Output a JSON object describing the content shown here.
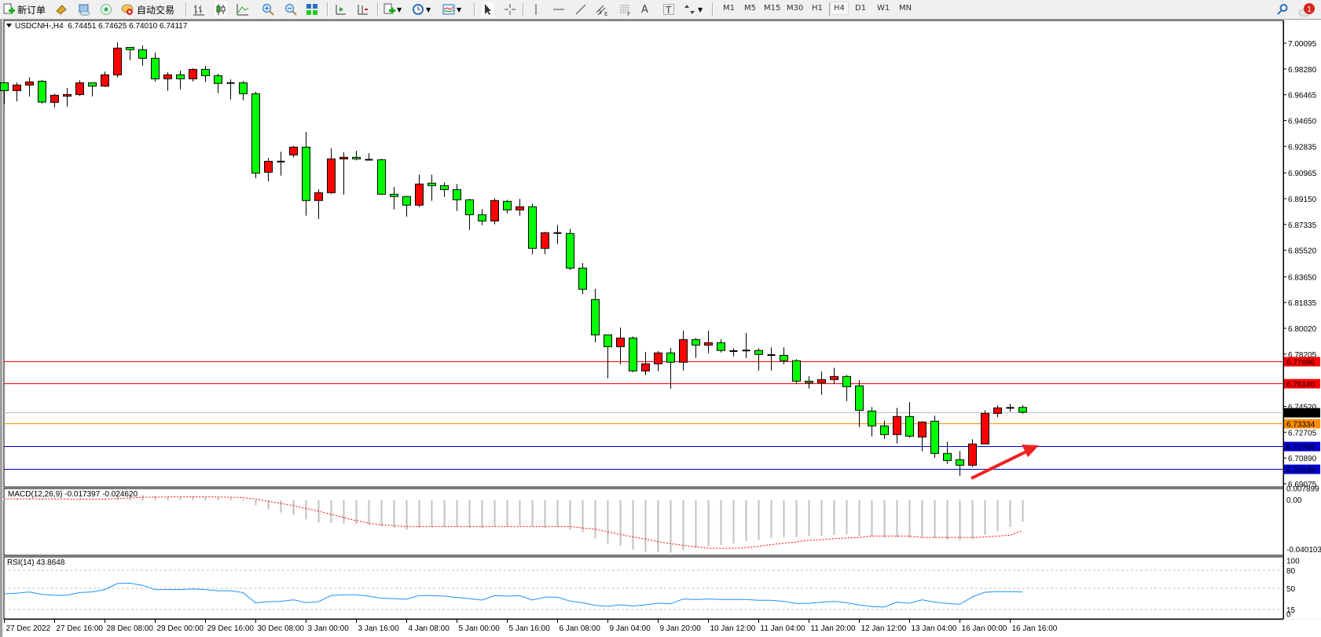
{
  "toolbar": {
    "new_order_label": "新订单",
    "auto_trading_label": "自动交易",
    "timeframes": [
      "M1",
      "M5",
      "M15",
      "M30",
      "H1",
      "H4",
      "D1",
      "W1",
      "MN"
    ],
    "active_timeframe": "H4",
    "notification_count": "1",
    "tools": {
      "fibo_fan_sub": "E",
      "fibo_lines_sub": "F",
      "text_tool": "A",
      "text_label_tool": "T"
    }
  },
  "chart": {
    "symbol_line": "USDCNH-,H4  6.74451 6.74625 6.74010 6.74117",
    "bull_color": "#ff0000",
    "bear_color": "#00ff00",
    "price_ticks": [
      "7.00095",
      "6.98280",
      "6.96465",
      "6.94650",
      "6.92835",
      "6.90965",
      "6.89150",
      "6.87335",
      "6.85520",
      "6.83650",
      "6.81835",
      "6.80020",
      "6.78205",
      "6.74520",
      "6.72705",
      "6.70890",
      "6.69075"
    ],
    "levels": [
      {
        "price": "6.77696",
        "color": "#ff0000",
        "label_bg": "#ff0000"
      },
      {
        "price": "6.76140",
        "color": "#ff0000",
        "label_bg": "#ff0000"
      },
      {
        "price": "6.74117",
        "color": "#c0c0c0",
        "label_bg": "#000000"
      },
      {
        "price": "6.73334",
        "color": "#ff8c00",
        "label_bg": "#ff8c00"
      },
      {
        "price": "6.71706",
        "color": "#0000cd",
        "label_bg": "#0000cd"
      },
      {
        "price": "6.70135",
        "color": "#0000cd",
        "label_bg": "#0000cd"
      }
    ],
    "annotation_arrow_color": "#ee2222",
    "time_labels": [
      "27 Dec 2022",
      "27 Dec 16:00",
      "28 Dec 08:00",
      "29 Dec 00:00",
      "29 Dec 16:00",
      "30 Dec 08:00",
      "3 Jan 00:00",
      "3 Jan 16:00",
      "4 Jan 08:00",
      "5 Jan 00:00",
      "5 Jan 16:00",
      "6 Jan 08:00",
      "9 Jan 04:00",
      "9 Jan 20:00",
      "10 Jan 12:00",
      "11 Jan 04:00",
      "11 Jan 20:00",
      "12 Jan 12:00",
      "13 Jan 04:00",
      "16 Jan 00:00",
      "16 Jan 16:00"
    ]
  },
  "chart_data": [
    {
      "type": "candlestick",
      "title": "USDCNH-,H4",
      "ylim": [
        6.6885,
        7.017
      ],
      "ohlc_order": [
        "open",
        "high",
        "low",
        "close"
      ],
      "candles": [
        [
          6.9731,
          6.9733,
          6.958,
          6.9676
        ],
        [
          6.9676,
          6.9733,
          6.9599,
          6.9715
        ],
        [
          6.9715,
          6.977,
          6.9635,
          6.9737
        ],
        [
          6.9742,
          6.9751,
          6.9585,
          6.9595
        ],
        [
          6.9593,
          6.9654,
          6.9558,
          6.9643
        ],
        [
          6.9637,
          6.9694,
          6.9563,
          6.9648
        ],
        [
          6.9648,
          6.9748,
          6.9637,
          6.9731
        ],
        [
          6.9731,
          6.9731,
          6.9635,
          6.9707
        ],
        [
          6.9707,
          6.981,
          6.9702,
          6.9787
        ],
        [
          6.9787,
          7.0015,
          6.9768,
          6.9975
        ],
        [
          6.998,
          6.998,
          6.989,
          6.9964
        ],
        [
          6.9964,
          6.9993,
          6.9851,
          6.9903
        ],
        [
          6.9903,
          6.9943,
          6.974,
          6.9759
        ],
        [
          6.9759,
          6.9805,
          6.9674,
          6.9787
        ],
        [
          6.9787,
          6.9816,
          6.9685,
          6.9759
        ],
        [
          6.9759,
          6.9833,
          6.974,
          6.9825
        ],
        [
          6.9825,
          6.9849,
          6.9735,
          6.9781
        ],
        [
          6.9781,
          6.9794,
          6.9657,
          6.9726
        ],
        [
          6.9729,
          6.9755,
          6.9613,
          6.9729
        ],
        [
          6.9731,
          6.9744,
          6.9608,
          6.9654
        ],
        [
          6.9654,
          6.9667,
          6.906,
          6.9095
        ],
        [
          6.9101,
          6.9202,
          6.9038,
          6.9178
        ],
        [
          6.9176,
          6.9246,
          6.9077,
          6.9176
        ],
        [
          6.9223,
          6.9287,
          6.9204,
          6.9278
        ],
        [
          6.9278,
          6.9385,
          6.8795,
          6.8902
        ],
        [
          6.8902,
          6.8981,
          6.8772,
          6.8957
        ],
        [
          6.8957,
          6.9269,
          6.8948,
          6.9195
        ],
        [
          6.9195,
          6.9241,
          6.8944,
          6.9206
        ],
        [
          6.9206,
          6.9252,
          6.9184,
          6.9195
        ],
        [
          6.9189,
          6.9235,
          6.9184,
          6.9189
        ],
        [
          6.9189,
          6.9195,
          6.8942,
          6.8946
        ],
        [
          6.8946,
          6.8996,
          6.8839,
          6.893
        ],
        [
          6.893,
          6.8935,
          6.8789,
          6.8869
        ],
        [
          6.8869,
          6.9084,
          6.8855,
          6.9018
        ],
        [
          6.9024,
          6.9084,
          6.89,
          6.9007
        ],
        [
          6.9007,
          6.9029,
          6.8927,
          6.8979
        ],
        [
          6.8979,
          6.9018,
          6.8828,
          6.8907
        ],
        [
          6.8907,
          6.8913,
          6.8695,
          6.8802
        ],
        [
          6.8802,
          6.8841,
          6.8728,
          6.8758
        ],
        [
          6.8758,
          6.8918,
          6.8734,
          6.8902
        ],
        [
          6.8896,
          6.8907,
          6.8811,
          6.8836
        ],
        [
          6.8836,
          6.8913,
          6.8795,
          6.8858
        ],
        [
          6.8858,
          6.888,
          6.8524,
          6.8565
        ],
        [
          6.8565,
          6.8681,
          6.8524,
          6.8675
        ],
        [
          6.8673,
          6.873,
          6.8596,
          6.8673
        ],
        [
          6.867,
          6.8703,
          6.8413,
          6.8426
        ],
        [
          6.8426,
          6.8461,
          6.8242,
          6.8277
        ],
        [
          6.8205,
          6.8279,
          6.7904,
          6.7956
        ],
        [
          6.7956,
          6.7956,
          6.765,
          6.7873
        ],
        [
          6.7873,
          6.8008,
          6.7749,
          6.7934
        ],
        [
          6.7934,
          6.7945,
          6.7694,
          6.7702
        ],
        [
          6.7702,
          6.7836,
          6.7672,
          6.7752
        ],
        [
          6.7752,
          6.7842,
          6.77,
          6.7829
        ],
        [
          6.7829,
          6.7864,
          6.7578,
          6.7763
        ],
        [
          6.7763,
          6.7986,
          6.7705,
          6.7923
        ],
        [
          6.7923,
          6.7934,
          6.7794,
          6.7884
        ],
        [
          6.7884,
          6.7986,
          6.7827,
          6.7901
        ],
        [
          6.7901,
          6.7923,
          6.7832,
          6.7846
        ],
        [
          6.7842,
          6.7862,
          6.7805,
          6.7842
        ],
        [
          6.7846,
          6.7969,
          6.7794,
          6.7846
        ],
        [
          6.7846,
          6.7862,
          6.7705,
          6.7818
        ],
        [
          6.7814,
          6.7868,
          6.7705,
          6.7814
        ],
        [
          6.7812,
          6.7868,
          6.7749,
          6.7774
        ],
        [
          6.7774,
          6.7785,
          6.7611,
          6.763
        ],
        [
          6.763,
          6.7665,
          6.7578,
          6.7619
        ],
        [
          6.7619,
          6.7698,
          6.7534,
          6.7641
        ],
        [
          6.7641,
          6.7724,
          6.7611,
          6.7663
        ],
        [
          6.7663,
          6.7674,
          6.749,
          6.7591
        ],
        [
          6.7597,
          6.7637,
          6.7307,
          6.7425
        ],
        [
          6.742,
          6.7448,
          6.7241,
          6.7315
        ],
        [
          6.7315,
          6.7353,
          6.7224,
          6.7254
        ],
        [
          6.7254,
          6.7442,
          6.7191,
          6.7381
        ],
        [
          6.7381,
          6.7482,
          6.7232,
          6.7243
        ],
        [
          6.7237,
          6.7348,
          6.7136,
          6.7342
        ],
        [
          6.7348,
          6.7387,
          6.7091,
          6.7121
        ],
        [
          6.7121,
          6.7204,
          6.7047,
          6.7071
        ],
        [
          6.7077,
          6.7138,
          6.6964,
          6.7038
        ],
        [
          6.7038,
          6.7221,
          6.7025,
          6.7188
        ],
        [
          6.7188,
          6.7425,
          6.7188,
          6.7403
        ],
        [
          6.7403,
          6.7459,
          6.7376,
          6.7442
        ],
        [
          6.7442,
          6.747,
          6.7414,
          6.7442
        ],
        [
          6.74451,
          6.74625,
          6.7401,
          6.74117
        ]
      ]
    },
    {
      "type": "bar",
      "title": "MACD(12,26,9) -0.017397 -0.024620",
      "ylim": [
        -0.0445,
        0.0094
      ],
      "tick_labels": [
        "0.007899",
        "0.00",
        "-0.040103"
      ],
      "histogram_color": "#c0c0c0",
      "signal_color": "#ff0000",
      "main": [
        0.0015,
        0.0012,
        0.0012,
        0.0008,
        0.0005,
        0.0003,
        0.0006,
        0.0006,
        0.001,
        0.003,
        0.004,
        0.0042,
        0.0035,
        0.003,
        0.0028,
        0.003,
        0.0028,
        0.0022,
        0.0018,
        0.001,
        -0.004,
        -0.0075,
        -0.01,
        -0.0115,
        -0.0155,
        -0.018,
        -0.0185,
        -0.019,
        -0.0195,
        -0.02,
        -0.0213,
        -0.0224,
        -0.0238,
        -0.0224,
        -0.0219,
        -0.0217,
        -0.0217,
        -0.0224,
        -0.0224,
        -0.0213,
        -0.0213,
        -0.0207,
        -0.0213,
        -0.0224,
        -0.0217,
        -0.0238,
        -0.0261,
        -0.0311,
        -0.0349,
        -0.0368,
        -0.0399,
        -0.0418,
        -0.0418,
        -0.0424,
        -0.0405,
        -0.0387,
        -0.0374,
        -0.0362,
        -0.0349,
        -0.033,
        -0.0318,
        -0.0305,
        -0.0299,
        -0.0299,
        -0.0286,
        -0.0286,
        -0.028,
        -0.0274,
        -0.0286,
        -0.0293,
        -0.0299,
        -0.0299,
        -0.0305,
        -0.0299,
        -0.0305,
        -0.0318,
        -0.0324,
        -0.0311,
        -0.028,
        -0.0249,
        -0.0217,
        -0.017397
      ],
      "signal": [
        0.001,
        0.0011,
        0.0011,
        0.001,
        0.001,
        0.0009,
        0.0008,
        0.0008,
        0.0009,
        0.0013,
        0.0018,
        0.0023,
        0.0025,
        0.0026,
        0.0027,
        0.0027,
        0.0027,
        0.0026,
        0.0024,
        0.0021,
        0.0009,
        -0.0008,
        -0.0026,
        -0.0044,
        -0.0066,
        -0.0089,
        -0.0115,
        -0.014,
        -0.0165,
        -0.0185,
        -0.0199,
        -0.0205,
        -0.0213,
        -0.0213,
        -0.0213,
        -0.0213,
        -0.0213,
        -0.0213,
        -0.0213,
        -0.0213,
        -0.0213,
        -0.0213,
        -0.0213,
        -0.0213,
        -0.0213,
        -0.0213,
        -0.0224,
        -0.0234,
        -0.0255,
        -0.0276,
        -0.0297,
        -0.0314,
        -0.0334,
        -0.0351,
        -0.0364,
        -0.0376,
        -0.0389,
        -0.0389,
        -0.0389,
        -0.0383,
        -0.0372,
        -0.0359,
        -0.0347,
        -0.0337,
        -0.0324,
        -0.0318,
        -0.0311,
        -0.0305,
        -0.0301,
        -0.029,
        -0.029,
        -0.029,
        -0.029,
        -0.0301,
        -0.0301,
        -0.0301,
        -0.0301,
        -0.0301,
        -0.0297,
        -0.029,
        -0.0282,
        -0.02462
      ]
    },
    {
      "type": "line",
      "title": "RSI(14) 43.8648",
      "ylim": [
        0,
        100
      ],
      "tick_labels": [
        "100",
        "80",
        "50",
        "15",
        "0"
      ],
      "levels": [
        80,
        50,
        15
      ],
      "line_color": "#1e90ff",
      "values": [
        41,
        42,
        44,
        40,
        38.5,
        38.5,
        43,
        44,
        48,
        58,
        58.5,
        55,
        48,
        48,
        48,
        49,
        48,
        46,
        46,
        43,
        26,
        28,
        28.5,
        31,
        26.5,
        28,
        38,
        39.3,
        39.3,
        37,
        33.6,
        33,
        32,
        38,
        38,
        37,
        35,
        33,
        30.6,
        38,
        37,
        38,
        30.6,
        35.4,
        35.4,
        28.9,
        26.3,
        21.9,
        20.2,
        22.8,
        20.6,
        22.8,
        25.4,
        24.5,
        32.3,
        31.5,
        32.3,
        31.5,
        31.5,
        31.5,
        30.2,
        30.2,
        28.4,
        25,
        25,
        27.1,
        28.4,
        26.3,
        22.4,
        19.8,
        19,
        27.1,
        25.4,
        31,
        27.1,
        25,
        23.7,
        35.8,
        43.6,
        44.5,
        44.5,
        43.8648
      ]
    }
  ]
}
